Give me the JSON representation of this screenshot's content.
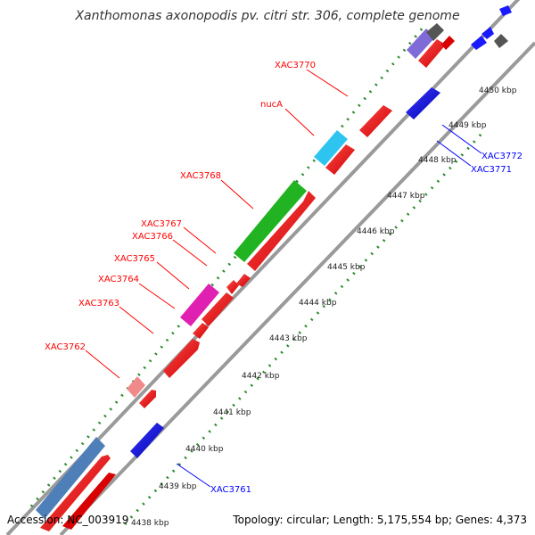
{
  "title": "Xanthomonas axonopodis pv. citri str. 306, complete genome",
  "footer": {
    "accession": "Accession: NC_003919",
    "summary": "Topology: circular; Length: 5,175,554 bp; Genes: 4,373"
  },
  "ticks": [
    "4438 kbp",
    "4439 kbp",
    "4440 kbp",
    "4441 kbp",
    "4442 kbp",
    "4443 kbp",
    "4444 kbp",
    "4445 kbp",
    "4446 kbp",
    "4447 kbp",
    "4448 kbp",
    "4449 kbp",
    "4450 kbp"
  ],
  "forward_labels": [
    "XAC3770",
    "nucA",
    "XAC3768",
    "XAC3767",
    "XAC3766",
    "XAC3765",
    "XAC3764",
    "XAC3763",
    "XAC3762"
  ],
  "reverse_labels": [
    "XAC3772",
    "XAC3771",
    "XAC3761"
  ],
  "colors": {
    "forward": "#ff0000",
    "reverse": "#0000ff",
    "tick_green": "#2e8b2e",
    "backbone": "#999999"
  }
}
